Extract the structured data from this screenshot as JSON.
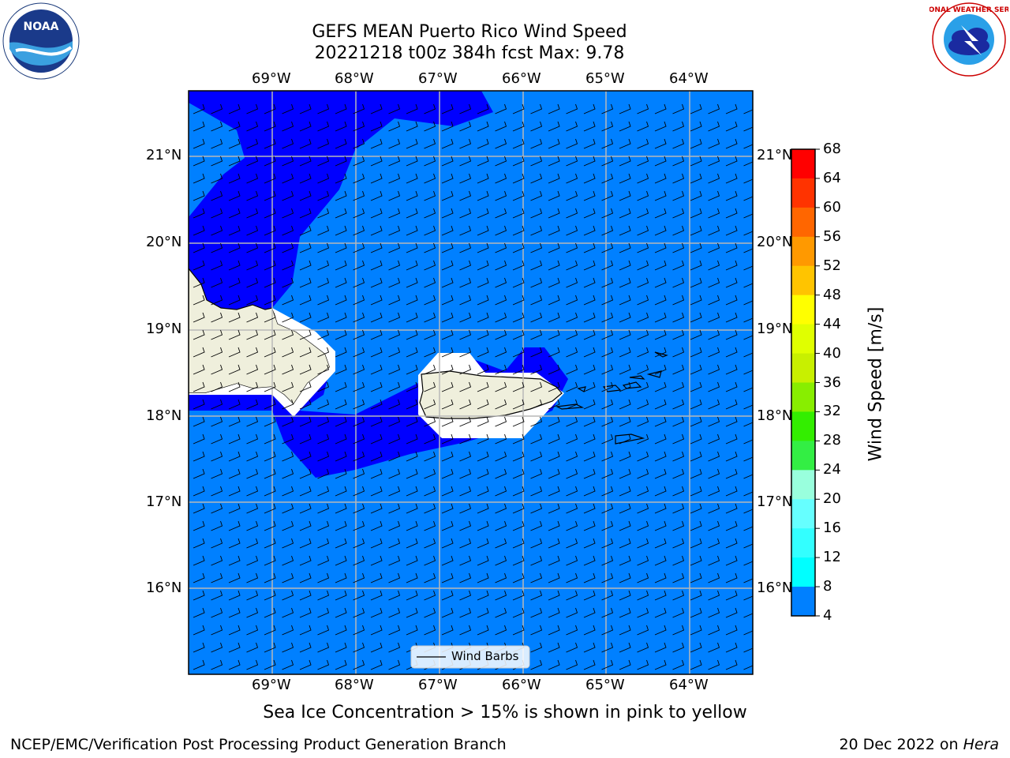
{
  "title": {
    "line1": "GEFS MEAN Puerto Rico Wind Speed",
    "line2": "20221218 t00z 384h fcst   Max: 9.78"
  },
  "map": {
    "lon_labels": [
      "69°W",
      "68°W",
      "67°W",
      "66°W",
      "65°W",
      "64°W"
    ],
    "lat_labels": [
      "21°N",
      "20°N",
      "19°N",
      "18°N",
      "17°N",
      "16°N"
    ],
    "legend_label": "Wind Barbs",
    "ocean_colors": {
      "low": "#0000ff",
      "mid": "#0080ff",
      "land": "#efefdc"
    }
  },
  "colorbar": {
    "label": "Wind Speed [m/s]",
    "ticks": [
      "68",
      "64",
      "60",
      "56",
      "52",
      "48",
      "44",
      "40",
      "36",
      "32",
      "28",
      "24",
      "20",
      "16",
      "12",
      "8",
      "4"
    ],
    "colors": [
      "#ff0000",
      "#ff3300",
      "#ff6600",
      "#ff9900",
      "#ffc400",
      "#ffff00",
      "#e0ff00",
      "#c8f000",
      "#88ee00",
      "#33ee00",
      "#33ee44",
      "#99ffdd",
      "#66ffff",
      "#33ffff",
      "#00ffff",
      "#0080ff",
      "#0000ff"
    ]
  },
  "caption": "Sea Ice Concentration > 15% is shown in pink to yellow",
  "footer": {
    "left": "NCEP/EMC/Verification Post Processing Product Generation Branch",
    "date": "20 Dec 2022 on ",
    "system": "Hera"
  },
  "logos": {
    "noaa_text": "NOAA",
    "noaa_ring": "NATIONAL OCEANIC AND ATMOSPHERIC ADMINISTRATION · U.S. DEPARTMENT OF COMMERCE",
    "nws_ring": "NATIONAL WEATHER SERVICE"
  }
}
